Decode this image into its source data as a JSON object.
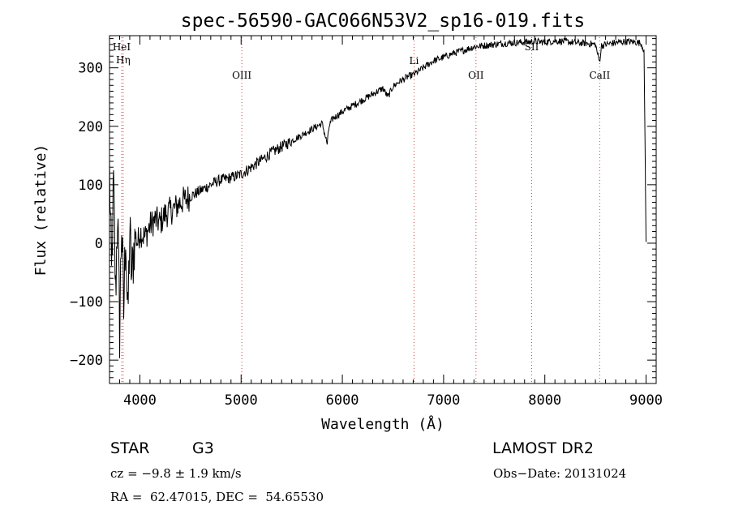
{
  "chart_data": {
    "type": "line",
    "title": "spec-56590-GAC066N53V2_sp16-019.fits",
    "xlabel": "Wavelength (Å)",
    "ylabel": "Flux (relative)",
    "xlim": [
      3700,
      9100
    ],
    "ylim": [
      -240,
      355
    ],
    "xticks": [
      4000,
      5000,
      6000,
      7000,
      8000,
      9000
    ],
    "yticks": [
      -200,
      -100,
      0,
      100,
      200,
      300
    ],
    "grid": false,
    "legend": "none",
    "series": [
      {
        "x": [
          3700,
          3720,
          3740,
          3760,
          3780,
          3800,
          3820,
          3840,
          3860,
          3880,
          3900,
          3920,
          3950,
          3980,
          4000,
          4050,
          4100,
          4150,
          4200,
          4250,
          4300,
          4350,
          4400,
          4450,
          4500,
          4550,
          4600,
          4650,
          4700,
          4750,
          4800,
          4850,
          4900,
          4950,
          5000,
          5100,
          5200,
          5300,
          5400,
          5500,
          5600,
          5700,
          5800,
          5850,
          5870,
          5900,
          6000,
          6100,
          6200,
          6300,
          6400,
          6450,
          6500,
          6550,
          6600,
          6650,
          6700,
          6800,
          6900,
          7000,
          7100,
          7200,
          7300,
          7400,
          7500,
          7600,
          7700,
          7800,
          7900,
          8000,
          8100,
          8200,
          8300,
          8400,
          8500,
          8540,
          8560,
          8600,
          8700,
          8800,
          8900,
          8950,
          8980,
          9000
        ],
        "y": [
          130,
          -60,
          100,
          -90,
          60,
          -150,
          40,
          -120,
          30,
          -140,
          20,
          -60,
          15,
          0,
          20,
          10,
          30,
          40,
          35,
          50,
          55,
          60,
          70,
          75,
          80,
          85,
          90,
          95,
          100,
          105,
          108,
          110,
          112,
          115,
          118,
          130,
          142,
          155,
          165,
          175,
          185,
          195,
          205,
          170,
          200,
          212,
          225,
          235,
          245,
          255,
          265,
          250,
          268,
          275,
          280,
          285,
          288,
          300,
          312,
          318,
          325,
          330,
          336,
          338,
          340,
          342,
          343,
          344,
          345,
          344,
          346,
          345,
          343,
          342,
          340,
          310,
          338,
          340,
          343,
          345,
          344,
          342,
          330,
          0
        ]
      }
    ],
    "annotations": [
      {
        "label": "HeI",
        "x": 3820
      },
      {
        "label": "Hη",
        "x": 3835
      },
      {
        "label": "OIII",
        "x": 5007
      },
      {
        "label": "Li",
        "x": 6708
      },
      {
        "label": "OII",
        "x": 7320
      },
      {
        "label": "SII",
        "x": 7870
      },
      {
        "label": "CaII",
        "x": 8542
      }
    ]
  },
  "info": {
    "object_class": "STAR",
    "subclass": "G3",
    "cz": "cz = −9.8 ± 1.9 km/s",
    "coords": "RA =  62.47015, DEC =  54.65530",
    "survey": "LAMOST DR2",
    "obs_date": "Obs−Date: 20131024"
  },
  "colors": {
    "spectrum": "#000000",
    "line_markers": "#d04040",
    "axes": "#000000"
  }
}
